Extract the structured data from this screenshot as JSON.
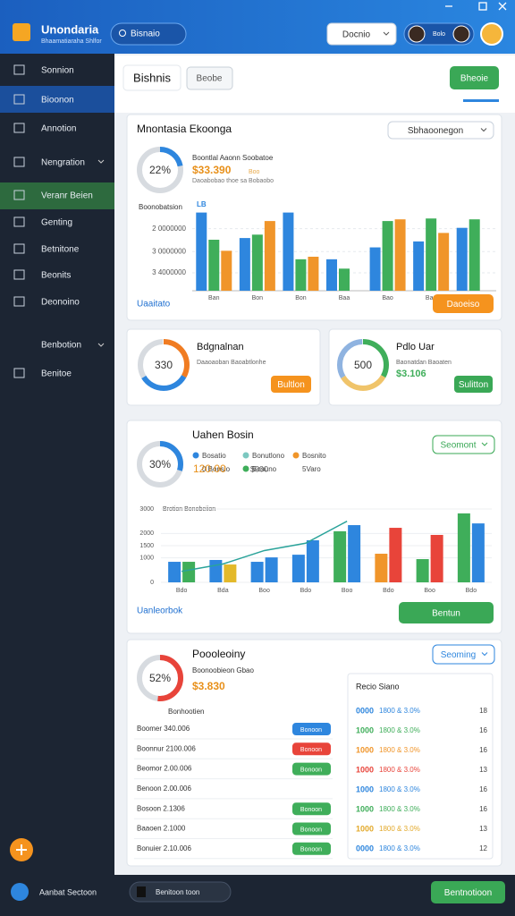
{
  "header": {
    "title": "Unondaria",
    "subtitle": "Bhaamatiaraha Shlfor",
    "search": "Bisnaio",
    "select": "Docnio",
    "user": "Bolo"
  },
  "sidebar": {
    "items": [
      "Sonnion",
      "Bioonon",
      "Annotion",
      "Nengration",
      "Veranr Beien",
      "Genting",
      "Betnitone",
      "Beonits",
      "Deonoino"
    ],
    "section": "Benbotion",
    "section_items": [
      "Benitoe"
    ]
  },
  "toolbar": {
    "tabs": [
      "Bishnis",
      "Beobe"
    ],
    "action": "Bheoie"
  },
  "card1": {
    "title": "Mnontasia Ekoonga",
    "select": "Sbhaoonegon",
    "donut": {
      "value": 22,
      "value_label": "22%",
      "color": "#2e86de"
    },
    "heading": "Boontlal Aaonn Soobatoe",
    "stat": "$33.390",
    "stat_note": "Boo",
    "caption": "Daoabobao thoe sa Bobaobo",
    "link": "Uaaitato",
    "button": "Daoeiso",
    "chart": {
      "y_title": "Boonobatsion",
      "legend": "LB",
      "ylim": [
        0,
        100
      ],
      "yticks": [
        {
          "value": 73,
          "label": "2 0000000"
        },
        {
          "value": 46,
          "label": "3 0000000"
        },
        {
          "value": 21,
          "label": "3 4000000"
        }
      ],
      "categories": [
        "Ban",
        "Bon",
        "Bon",
        "Baa",
        "Bao",
        "Ban",
        "Ban"
      ],
      "series": [
        {
          "color": "#2e86de",
          "values": [
            92,
            62,
            92,
            37,
            51,
            58,
            74
          ]
        },
        {
          "color": "#3fae5a",
          "values": [
            60,
            66,
            37,
            26,
            82,
            85,
            84
          ]
        },
        {
          "color": "#f0952a",
          "values": [
            47,
            82,
            40,
            null,
            84,
            68,
            null
          ]
        }
      ]
    }
  },
  "card2": {
    "number": "330",
    "title": "Bdgnalnan",
    "caption": "Daaoaoban Baoabtlonhe",
    "button": "Bultlon"
  },
  "card3": {
    "number": "500",
    "title": "Pdlo Uar",
    "caption": "Baonatdan Baoaten",
    "stat": "$3.106",
    "button": "Sulitton"
  },
  "card4": {
    "title": "Uahen Bosin",
    "select": "Seomont",
    "donut": {
      "value": 30,
      "value_label": "30%",
      "color": "#2e86de"
    },
    "stat": "120.00",
    "stat2": "$000",
    "legend": [
      {
        "label": "Bosatio",
        "color": "#2e86de"
      },
      {
        "label": "Bonutlono",
        "color": "#7cc8c0"
      },
      {
        "label": "Bosnito",
        "color": "#f0952a"
      },
      {
        "label": "0 Bonslo"
      },
      {
        "label": "Bosuno",
        "color": "#3fae5a"
      },
      {
        "label": "5Varo"
      }
    ],
    "link": "Uanleorbok",
    "button": "Bentun",
    "chart": {
      "legend": "Brotion  Bonobeiion",
      "ylim": [
        0,
        3000
      ],
      "yticks": [
        0,
        1000,
        1500,
        2000,
        3000
      ],
      "categories": [
        "Bdo",
        "Bda",
        "Boo",
        "Bdo",
        "Boo",
        "Bdo",
        "Boo",
        "Bdo"
      ],
      "bars": [
        {
          "values": [
            840,
            915,
            840,
            1130,
            2090,
            1170,
            950,
            2820
          ],
          "colors": [
            "#2e86de",
            "#2e86de",
            "#2e86de",
            "#2e86de",
            "#3fae5a",
            "#f0952a",
            "#3fae5a",
            "#3fae5a"
          ]
        },
        {
          "values": [
            840,
            730,
            1020,
            1720,
            2340,
            2230,
            1940,
            2410
          ],
          "colors": [
            "#3fae5a",
            "#e3b92a",
            "#2e86de",
            "#2e86de",
            "#2e86de",
            "#e8443a",
            "#e8443a",
            "#2e86de"
          ]
        }
      ],
      "line": {
        "color": "#2aa39a",
        "values": [
          450,
          750,
          1300,
          1600,
          2500,
          null,
          null,
          null
        ]
      }
    }
  },
  "card5": {
    "title": "Poooleoiny",
    "select": "Seoming",
    "donut": {
      "value": 52,
      "value_label": "52%",
      "color": "#e8443a"
    },
    "stat": "$3.830",
    "stat_note": "Boonoobieon Gbao",
    "subtitle": "Bonhootien",
    "rows": [
      {
        "label": "Boomer 340.006",
        "status": "Bonoon",
        "color": "#2e86de"
      },
      {
        "label": "Boonnur 2100.006",
        "status": "Bonoon",
        "color": "#e8443a"
      },
      {
        "label": "Beomor 2.00.006",
        "status": "Bonoon",
        "color": "#3fae5a"
      },
      {
        "label": "Benoon 2.00.006"
      },
      {
        "label": "Bosoon 2.1306",
        "status": "Bonoon",
        "color": "#3fae5a"
      },
      {
        "label": "Baaoen 2.1000",
        "status": "Bonoon",
        "color": "#3fae5a"
      },
      {
        "label": "Bonuier 2.10.006",
        "status": "Bonoon",
        "color": "#3fae5a"
      }
    ],
    "panel": {
      "title": "Recio Siano",
      "rows": [
        {
          "code": "0000",
          "color": "#2e86de",
          "text": "1800 & 3.0%",
          "count": "18"
        },
        {
          "code": "1000",
          "color": "#3fae5a",
          "text": "1800 & 3.0%",
          "count": "16"
        },
        {
          "code": "1000",
          "color": "#f0952a",
          "text": "1800 & 3.0%",
          "count": "16"
        },
        {
          "code": "1000",
          "color": "#e8443a",
          "text": "1800 & 3.0%",
          "count": "13"
        },
        {
          "code": "1000",
          "color": "#2e86de",
          "text": "1800 & 3.0%",
          "count": "16"
        },
        {
          "code": "1000",
          "color": "#3fae5a",
          "text": "1800 & 3.0%",
          "count": "16"
        },
        {
          "code": "1000",
          "color": "#e3a92a",
          "text": "1800 & 3.0%",
          "count": "13"
        },
        {
          "code": "0000",
          "color": "#2e86de",
          "text": "1800 & 3.0%",
          "count": "12"
        }
      ]
    }
  },
  "footer": {
    "title": "Aanbat Sectoon",
    "select": "Benitoon toon",
    "button": "Bentnotioon"
  }
}
